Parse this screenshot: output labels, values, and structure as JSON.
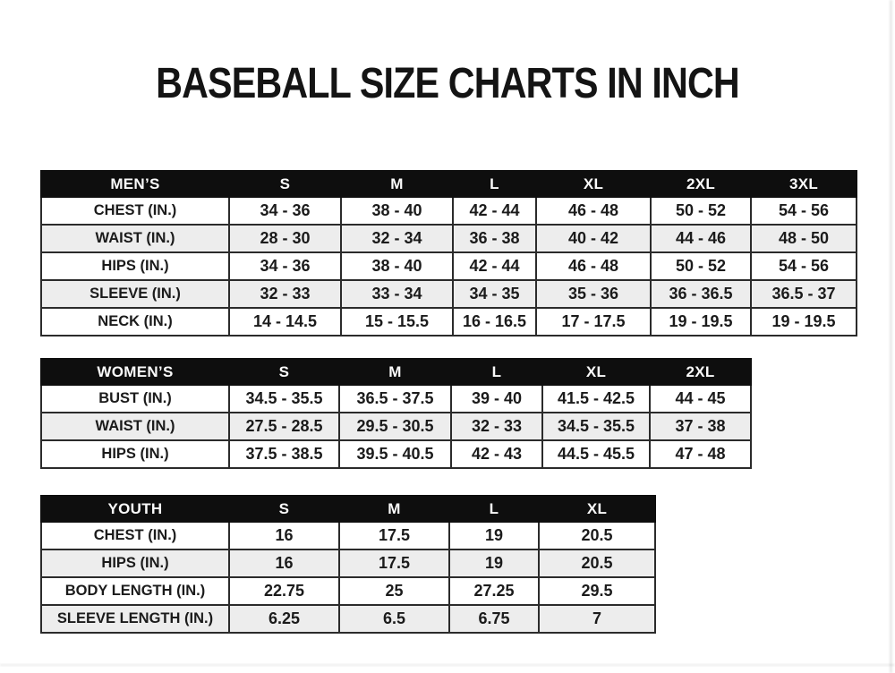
{
  "page": {
    "title": "BASEBALL SIZE CHARTS IN INCH"
  },
  "colors": {
    "page_bg": "#ffffff",
    "header_bg": "#0e0e0e",
    "header_text": "#fafafa",
    "row_alt_bg": "#ededed",
    "border": "#2b2b2b",
    "text": "#1b1b1b"
  },
  "tables": [
    {
      "name": "mens",
      "header": [
        "MEN’S",
        "S",
        "M",
        "L",
        "XL",
        "2XL",
        "3XL"
      ],
      "rows": [
        [
          "CHEST (IN.)",
          "34 - 36",
          "38 - 40",
          "42 - 44",
          "46 - 48",
          "50 - 52",
          "54 - 56"
        ],
        [
          "WAIST (IN.)",
          "28 - 30",
          "32 - 34",
          "36 - 38",
          "40 - 42",
          "44 - 46",
          "48 - 50"
        ],
        [
          "HIPS (IN.)",
          "34 - 36",
          "38 - 40",
          "42 - 44",
          "46 - 48",
          "50 - 52",
          "54 - 56"
        ],
        [
          "SLEEVE (IN.)",
          "32 - 33",
          "33 - 34",
          "34 - 35",
          "35 - 36",
          "36 - 36.5",
          "36.5 - 37"
        ],
        [
          "NECK (IN.)",
          "14 - 14.5",
          "15 - 15.5",
          "16 - 16.5",
          "17 - 17.5",
          "19 - 19.5",
          "19 - 19.5"
        ]
      ]
    },
    {
      "name": "womens",
      "header": [
        "WOMEN’S",
        "S",
        "M",
        "L",
        "XL",
        "2XL"
      ],
      "rows": [
        [
          "BUST (IN.)",
          "34.5 - 35.5",
          "36.5 - 37.5",
          "39 - 40",
          "41.5 - 42.5",
          "44 - 45"
        ],
        [
          "WAIST (IN.)",
          "27.5 - 28.5",
          "29.5 - 30.5",
          "32 - 33",
          "34.5 - 35.5",
          "37 - 38"
        ],
        [
          "HIPS (IN.)",
          "37.5 - 38.5",
          "39.5 - 40.5",
          "42 - 43",
          "44.5 - 45.5",
          "47 - 48"
        ]
      ]
    },
    {
      "name": "youth",
      "header": [
        "YOUTH",
        "S",
        "M",
        "L",
        "XL"
      ],
      "rows": [
        [
          "CHEST (IN.)",
          "16",
          "17.5",
          "19",
          "20.5"
        ],
        [
          "HIPS (IN.)",
          "16",
          "17.5",
          "19",
          "20.5"
        ],
        [
          "BODY LENGTH (IN.)",
          "22.75",
          "25",
          "27.25",
          "29.5"
        ],
        [
          "SLEEVE LENGTH (IN.)",
          "6.25",
          "6.5",
          "6.75",
          "7"
        ]
      ]
    }
  ]
}
